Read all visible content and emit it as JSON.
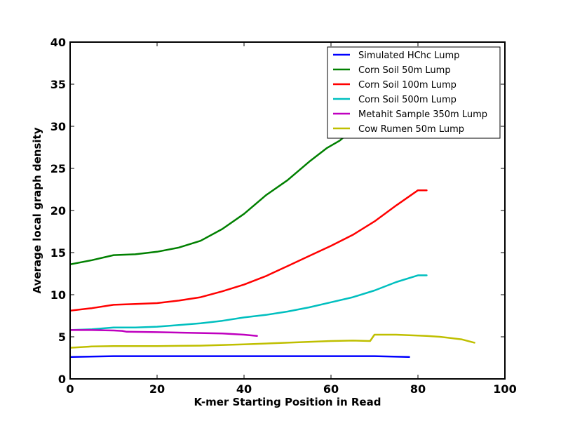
{
  "chart_data": {
    "type": "line",
    "xlabel": "K-mer Starting Position in Read",
    "ylabel": "Average local graph density",
    "xlim": [
      0,
      100
    ],
    "ylim": [
      0,
      40
    ],
    "xticks": [
      0,
      20,
      40,
      60,
      80,
      100
    ],
    "yticks": [
      0,
      5,
      10,
      15,
      20,
      25,
      30,
      35,
      40
    ],
    "grid": false,
    "legend_position": "top-right",
    "series": [
      {
        "name": "Simulated HChc Lump",
        "color": "#0000ff",
        "x": [
          0,
          10,
          20,
          30,
          40,
          50,
          60,
          70,
          78
        ],
        "y": [
          2.6,
          2.7,
          2.7,
          2.7,
          2.7,
          2.7,
          2.7,
          2.7,
          2.6
        ]
      },
      {
        "name": "Corn Soil 50m Lump",
        "color": "#008000",
        "x": [
          0,
          5,
          10,
          15,
          20,
          25,
          30,
          35,
          40,
          45,
          50,
          55,
          59,
          62,
          65
        ],
        "y": [
          13.6,
          14.1,
          14.7,
          14.8,
          15.1,
          15.6,
          16.4,
          17.8,
          19.6,
          21.8,
          23.6,
          25.8,
          27.4,
          28.3,
          29.6
        ]
      },
      {
        "name": "Corn Soil 100m Lump",
        "color": "#ff0000",
        "x": [
          0,
          5,
          10,
          15,
          20,
          25,
          30,
          35,
          40,
          45,
          50,
          55,
          60,
          65,
          70,
          75,
          80,
          82
        ],
        "y": [
          8.1,
          8.4,
          8.8,
          8.9,
          9.0,
          9.3,
          9.7,
          10.4,
          11.2,
          12.2,
          13.4,
          14.6,
          15.8,
          17.1,
          18.7,
          20.6,
          22.4,
          22.4
        ]
      },
      {
        "name": "Corn Soil 500m Lump",
        "color": "#00bfbf",
        "x": [
          0,
          5,
          10,
          15,
          20,
          25,
          30,
          35,
          40,
          45,
          50,
          55,
          60,
          65,
          70,
          75,
          80,
          82
        ],
        "y": [
          5.8,
          5.9,
          6.1,
          6.1,
          6.2,
          6.4,
          6.6,
          6.9,
          7.3,
          7.6,
          8.0,
          8.5,
          9.1,
          9.7,
          10.5,
          11.5,
          12.3,
          12.3
        ]
      },
      {
        "name": "Metahit Sample 350m Lump",
        "color": "#bf00bf",
        "x": [
          0,
          5,
          10,
          12,
          13,
          20,
          30,
          35,
          40,
          43
        ],
        "y": [
          5.8,
          5.8,
          5.75,
          5.7,
          5.6,
          5.55,
          5.45,
          5.4,
          5.25,
          5.1
        ]
      },
      {
        "name": "Cow Rumen 50m Lump",
        "color": "#bfbf00",
        "x": [
          0,
          5,
          10,
          20,
          30,
          40,
          50,
          60,
          65,
          69,
          70,
          75,
          82,
          85,
          90,
          93
        ],
        "y": [
          3.7,
          3.85,
          3.9,
          3.9,
          3.95,
          4.1,
          4.3,
          4.5,
          4.55,
          4.5,
          5.25,
          5.25,
          5.1,
          5.0,
          4.7,
          4.3
        ]
      }
    ]
  }
}
